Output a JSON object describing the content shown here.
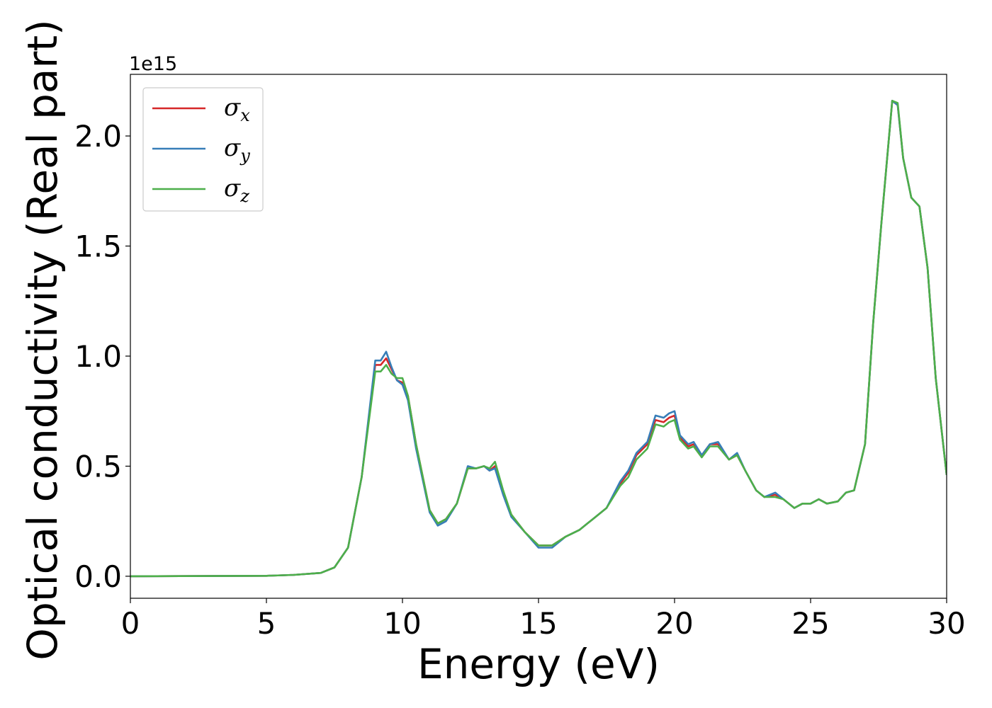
{
  "chart_data": {
    "type": "line",
    "title": "",
    "xlabel": "Energy (eV)",
    "ylabel": "Optical conductivity (Real part)",
    "y_offset_label": "1e15",
    "xlim": [
      0,
      30
    ],
    "ylim": [
      -0.1,
      2.28
    ],
    "x_ticks": [
      0,
      5,
      10,
      15,
      20,
      25,
      30
    ],
    "x_tick_labels": [
      "0",
      "5",
      "10",
      "15",
      "20",
      "25",
      "30"
    ],
    "y_ticks": [
      0.0,
      0.5,
      1.0,
      1.5,
      2.0
    ],
    "y_tick_labels": [
      "0.0",
      "0.5",
      "1.0",
      "1.5",
      "2.0"
    ],
    "grid": false,
    "legend_position": "top-left",
    "x": [
      0,
      5,
      6,
      7,
      7.5,
      8,
      8.5,
      9,
      9.2,
      9.4,
      9.6,
      9.8,
      10,
      10.2,
      10.5,
      11,
      11.3,
      11.6,
      12,
      12.4,
      12.7,
      13,
      13.2,
      13.4,
      13.7,
      14,
      14.5,
      15,
      15.5,
      16,
      16.5,
      16.8,
      17,
      17.5,
      18,
      18.3,
      18.6,
      19,
      19.3,
      19.6,
      19.8,
      20,
      20.2,
      20.5,
      20.7,
      21,
      21.3,
      21.6,
      22,
      22.3,
      22.6,
      23,
      23.3,
      23.7,
      24,
      24.4,
      24.7,
      25,
      25.3,
      25.6,
      26,
      26.3,
      26.6,
      27,
      27.3,
      27.6,
      28,
      28.2,
      28.4,
      28.7,
      29,
      29.3,
      29.6,
      30
    ],
    "series": [
      {
        "name": "σx",
        "color": "#d62728",
        "values": [
          0,
          0.002,
          0.006,
          0.015,
          0.04,
          0.13,
          0.45,
          0.96,
          0.96,
          0.99,
          0.94,
          0.89,
          0.88,
          0.82,
          0.6,
          0.3,
          0.24,
          0.26,
          0.33,
          0.49,
          0.49,
          0.5,
          0.48,
          0.5,
          0.38,
          0.28,
          0.2,
          0.14,
          0.14,
          0.18,
          0.21,
          0.24,
          0.26,
          0.31,
          0.42,
          0.47,
          0.55,
          0.6,
          0.71,
          0.7,
          0.72,
          0.73,
          0.63,
          0.59,
          0.6,
          0.55,
          0.6,
          0.6,
          0.53,
          0.55,
          0.48,
          0.39,
          0.36,
          0.37,
          0.35,
          0.31,
          0.33,
          0.33,
          0.35,
          0.33,
          0.34,
          0.38,
          0.39,
          0.6,
          1.15,
          1.6,
          2.16,
          2.14,
          1.9,
          1.72,
          1.68,
          1.4,
          0.9,
          0.46
        ]
      },
      {
        "name": "σy",
        "color": "#377eb8",
        "values": [
          0,
          0.002,
          0.006,
          0.015,
          0.04,
          0.13,
          0.45,
          0.98,
          0.98,
          1.02,
          0.95,
          0.89,
          0.87,
          0.8,
          0.58,
          0.29,
          0.23,
          0.25,
          0.33,
          0.5,
          0.49,
          0.5,
          0.48,
          0.49,
          0.37,
          0.27,
          0.2,
          0.13,
          0.13,
          0.18,
          0.21,
          0.24,
          0.26,
          0.31,
          0.43,
          0.48,
          0.56,
          0.61,
          0.73,
          0.72,
          0.74,
          0.75,
          0.64,
          0.6,
          0.61,
          0.55,
          0.6,
          0.61,
          0.53,
          0.56,
          0.48,
          0.39,
          0.36,
          0.38,
          0.35,
          0.31,
          0.33,
          0.33,
          0.35,
          0.33,
          0.34,
          0.38,
          0.39,
          0.6,
          1.15,
          1.6,
          2.16,
          2.14,
          1.9,
          1.72,
          1.68,
          1.4,
          0.9,
          0.46
        ]
      },
      {
        "name": "σz",
        "color": "#4daf4a",
        "values": [
          0,
          0.002,
          0.006,
          0.015,
          0.04,
          0.13,
          0.45,
          0.93,
          0.93,
          0.96,
          0.92,
          0.9,
          0.9,
          0.82,
          0.6,
          0.3,
          0.24,
          0.26,
          0.33,
          0.49,
          0.49,
          0.5,
          0.49,
          0.52,
          0.39,
          0.28,
          0.2,
          0.14,
          0.14,
          0.18,
          0.21,
          0.24,
          0.26,
          0.31,
          0.41,
          0.45,
          0.53,
          0.58,
          0.69,
          0.68,
          0.7,
          0.71,
          0.62,
          0.58,
          0.59,
          0.54,
          0.59,
          0.59,
          0.53,
          0.55,
          0.48,
          0.39,
          0.36,
          0.36,
          0.35,
          0.31,
          0.33,
          0.33,
          0.35,
          0.33,
          0.34,
          0.38,
          0.39,
          0.6,
          1.15,
          1.6,
          2.16,
          2.15,
          1.9,
          1.72,
          1.68,
          1.4,
          0.9,
          0.46
        ]
      }
    ]
  }
}
